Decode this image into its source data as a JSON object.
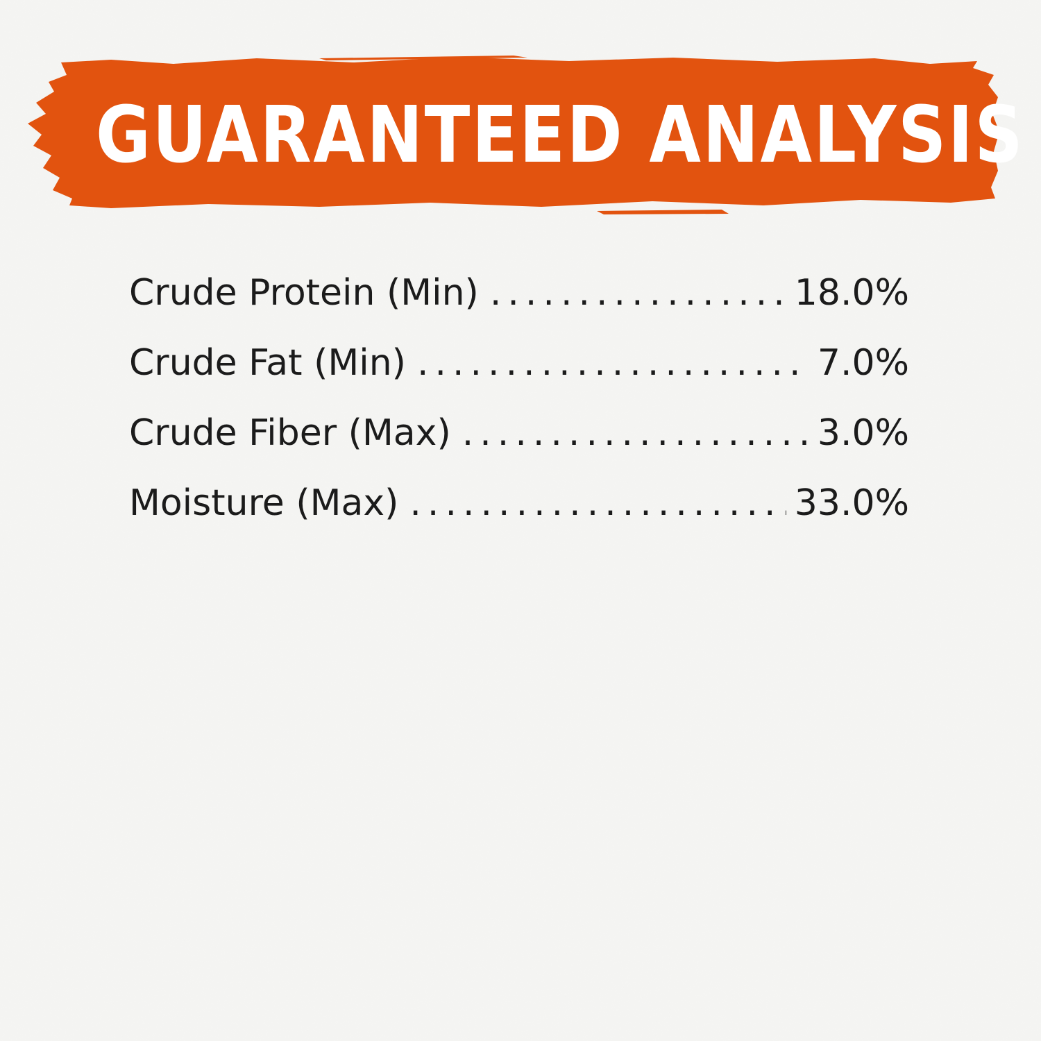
{
  "banner": {
    "title": "GUARANTEED ANALYSIS",
    "color": "#e2530f"
  },
  "analysis": {
    "rows": [
      {
        "label": "Crude Protein (Min)",
        "value": "18.0%"
      },
      {
        "label": "Crude Fat (Min)",
        "value": "7.0%"
      },
      {
        "label": "Crude Fiber (Max)",
        "value": "3.0%"
      },
      {
        "label": "Moisture (Max)",
        "value": "33.0%"
      }
    ]
  },
  "colors": {
    "background": "#f6f6f4",
    "text": "#1b1b1b",
    "banner_text": "#ffffff"
  }
}
